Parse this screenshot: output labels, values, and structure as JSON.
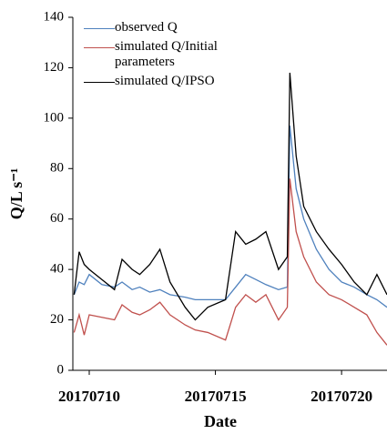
{
  "chart_data": {
    "type": "line",
    "x_label": "Date",
    "y_label": "Q/L s⁻¹",
    "x": [
      20170709.4,
      20170709.6,
      20170709.8,
      20170710.0,
      20170710.5,
      20170711.0,
      20170711.3,
      20170711.7,
      20170712.0,
      20170712.4,
      20170712.8,
      20170713.2,
      20170713.8,
      20170714.2,
      20170714.7,
      20170715.4,
      20170715.8,
      20170716.2,
      20170716.6,
      20170717.0,
      20170717.5,
      20170717.85,
      20170717.95,
      20170718.2,
      20170718.5,
      20170719.0,
      20170719.5,
      20170720.0,
      20170720.5,
      20170721.0,
      20170721.4,
      20170721.8
    ],
    "series": [
      {
        "name": "observed Q",
        "color": "#4f81bd",
        "values": [
          30,
          35,
          34,
          38,
          34,
          33,
          35,
          32,
          33,
          31,
          32,
          30,
          29,
          28,
          28,
          28,
          33,
          38,
          36,
          34,
          32,
          33,
          97,
          72,
          60,
          48,
          40,
          35,
          33,
          30,
          28,
          25
        ]
      },
      {
        "name": "simulated Q/Initial parameters",
        "color": "#c0504d",
        "values": [
          15,
          22,
          14,
          22,
          21,
          20,
          26,
          23,
          22,
          24,
          27,
          22,
          18,
          16,
          15,
          12,
          25,
          30,
          27,
          30,
          20,
          25,
          76,
          55,
          45,
          35,
          30,
          28,
          25,
          22,
          15,
          10
        ]
      },
      {
        "name": "simulated Q/IPSO",
        "color": "#000000",
        "values": [
          30,
          47,
          42,
          40,
          36,
          32,
          44,
          40,
          38,
          42,
          48,
          35,
          25,
          20,
          25,
          28,
          55,
          50,
          52,
          55,
          40,
          45,
          118,
          85,
          65,
          55,
          48,
          42,
          35,
          30,
          38,
          30
        ]
      }
    ],
    "xlim": [
      20170709.35,
      20170721.8
    ],
    "xticks": [
      20170710,
      20170715,
      20170720
    ],
    "ylim": [
      0,
      140
    ],
    "yticks": [
      0,
      20,
      40,
      60,
      80,
      100,
      120,
      140
    ]
  }
}
